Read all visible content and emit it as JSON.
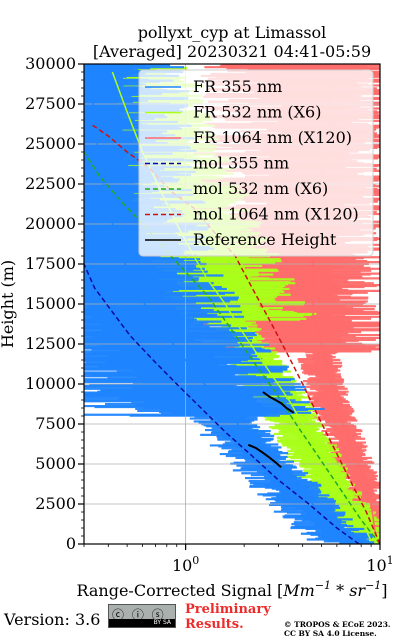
{
  "chart_data": {
    "type": "line",
    "title_line1": "pollyxt_cyp at Limassol",
    "title_line2": "[Averaged] 20230321 04:41-05:59",
    "xlabel_text": "Range-Corrected Signal [",
    "xlabel_unit": "Mm",
    "xlabel_unit_exp": "−1",
    "xlabel_mid": " * ",
    "xlabel_unit2": "sr",
    "xlabel_unit2_exp": "−1",
    "xlabel_close": "]",
    "ylabel": "Height (m)",
    "x_scale": "log",
    "xlim": [
      0.3,
      10
    ],
    "ylim": [
      0,
      30000
    ],
    "x_major_ticks": [
      1,
      10
    ],
    "x_tick_labels": [
      {
        "base": "10",
        "exp": "0"
      },
      {
        "base": "10",
        "exp": "1"
      }
    ],
    "y_ticks": [
      0,
      2500,
      5000,
      7500,
      10000,
      12500,
      15000,
      17500,
      20000,
      22500,
      25000,
      27500,
      30000
    ],
    "y_tick_labels": [
      "0",
      "2500",
      "5000",
      "7500",
      "10000",
      "12500",
      "15000",
      "17500",
      "20000",
      "22500",
      "25000",
      "27500",
      "30000"
    ],
    "grid": true,
    "legend_position": "top-right",
    "series": [
      {
        "name": "FR 355 nm",
        "color": "#1f85ff",
        "style": "solid",
        "x": [
          7.5,
          6.0,
          4.5,
          3.4,
          2.6,
          2.0,
          1.6,
          1.25,
          1.0,
          0.8,
          0.65,
          0.55,
          0.47,
          0.42,
          0.38,
          0.35,
          0.33
        ],
        "y": [
          100,
          1000,
          2500,
          4000,
          5500,
          7000,
          8500,
          10000,
          11500,
          13000,
          14500,
          16000,
          18000,
          20000,
          22500,
          25000,
          28000
        ]
      },
      {
        "name": "FR 532 nm (X6)",
        "color": "#aaff1a",
        "style": "solid",
        "x": [
          9.0,
          8.0,
          6.0,
          5.0,
          4.0,
          3.4,
          2.8,
          2.3,
          1.9,
          1.6,
          1.3,
          1.1,
          0.9,
          0.75,
          0.6,
          0.5,
          0.42
        ],
        "y": [
          200,
          1500,
          3500,
          5500,
          7500,
          9000,
          10500,
          12000,
          13500,
          15000,
          16500,
          18000,
          20000,
          22000,
          24500,
          27000,
          29500
        ]
      },
      {
        "name": "FR 1064 nm (X120)",
        "color": "#ff6b6b",
        "style": "solid",
        "x": [
          9.5,
          9.0,
          8.0,
          7.0,
          6.0,
          5.5,
          5.0,
          4.5,
          4.5,
          4.5,
          5.0,
          5.0,
          5.0,
          5.5,
          5.5
        ],
        "y": [
          500,
          2500,
          4500,
          6500,
          8500,
          10500,
          12500,
          14500,
          16500,
          18500,
          20500,
          22500,
          24500,
          26500,
          29000
        ]
      },
      {
        "name": "mol 355 nm",
        "color": "#0a0aa0",
        "style": "dashed",
        "x": [
          7.8,
          6.0,
          4.3,
          3.0,
          2.2,
          1.6,
          1.2,
          0.9,
          0.68,
          0.52,
          0.42,
          0.34,
          0.3
        ],
        "y": [
          0,
          1000,
          2500,
          4000,
          5500,
          7000,
          8500,
          10000,
          11500,
          13000,
          14500,
          16000,
          17500
        ]
      },
      {
        "name": "mol 532 nm (X6)",
        "color": "#22aa22",
        "style": "dashed",
        "x": [
          10.0,
          8.0,
          6.2,
          4.8,
          3.7,
          2.9,
          2.2,
          1.7,
          1.3,
          1.0,
          0.77,
          0.6,
          0.46,
          0.36,
          0.3
        ],
        "y": [
          0,
          1500,
          3500,
          5500,
          7500,
          9500,
          11500,
          13500,
          15500,
          17000,
          18500,
          20000,
          21500,
          23000,
          24500
        ]
      },
      {
        "name": "mol 1064 nm (X120)",
        "color": "#cc1111",
        "style": "dashed",
        "x": [
          10.0,
          8.5,
          7.0,
          5.8,
          4.8,
          4.0,
          3.3,
          2.7,
          2.2,
          1.8,
          1.4,
          1.1,
          0.85,
          0.65,
          0.5,
          0.4,
          0.33
        ],
        "y": [
          0,
          2000,
          4000,
          6000,
          8000,
          10000,
          12000,
          14000,
          16000,
          18000,
          19500,
          21000,
          22000,
          23500,
          24500,
          25500,
          26200
        ]
      },
      {
        "name": "Reference Height",
        "color": "#000000",
        "style": "solid",
        "segments": [
          {
            "x": [
              2.1,
              2.3,
              2.5,
              2.7,
              2.9,
              3.1
            ],
            "y": [
              6200,
              6000,
              5700,
              5400,
              5100,
              4800
            ]
          },
          {
            "x": [
              2.5,
              2.7,
              2.9,
              3.1,
              3.3,
              3.6
            ],
            "y": [
              9500,
              9200,
              9000,
              8800,
              8500,
              8200
            ]
          }
        ]
      }
    ]
  },
  "footer": {
    "version": "Version: 3.6",
    "cc_icons": "ⓒ ⓘ ⓢ",
    "cc_foot": "BY   SA",
    "preliminary_line1": "Preliminary",
    "preliminary_line2": "Results.",
    "copyright_line1": "© TROPOS & ECoE 2023.",
    "copyright_line2": "CC BY SA 4.0 License."
  }
}
